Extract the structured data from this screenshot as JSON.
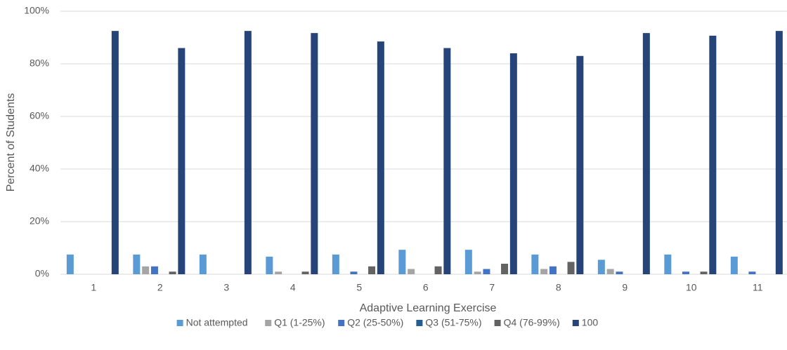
{
  "chart_data": {
    "type": "bar",
    "x_label": "Adaptive Learning Exercise",
    "y_label": "Percent of Students",
    "categories": [
      "1",
      "2",
      "3",
      "4",
      "5",
      "6",
      "7",
      "8",
      "9",
      "10",
      "11"
    ],
    "series": [
      {
        "name": "Not attempted",
        "color": "#5b9bd5",
        "values": [
          7.5,
          7.5,
          7.5,
          6.7,
          7.5,
          9.3,
          9.3,
          7.5,
          5.5,
          7.5,
          6.7
        ]
      },
      {
        "name": "Q1 (1-25%)",
        "color": "#a5a5a5",
        "values": [
          0,
          3,
          0,
          1,
          0,
          2,
          1,
          2,
          2,
          0,
          0
        ]
      },
      {
        "name": "Q2 (25-50%)",
        "color": "#4472c4",
        "values": [
          0,
          3,
          0,
          0,
          1,
          0,
          2,
          3,
          1,
          1,
          1
        ]
      },
      {
        "name": "Q3 (51-75%)",
        "color": "#255e91",
        "values": [
          0,
          0,
          0,
          0,
          0,
          0,
          0,
          0,
          0,
          0,
          0
        ]
      },
      {
        "name": "Q4 (76-99%)",
        "color": "#636363",
        "values": [
          0,
          1,
          0,
          1,
          3,
          3,
          4,
          4.7,
          0,
          1,
          0
        ]
      },
      {
        "name": "100",
        "color": "#264478",
        "values": [
          92.5,
          86,
          92.5,
          91.7,
          88.5,
          86,
          84,
          83,
          91.7,
          90.7,
          92.5
        ]
      }
    ],
    "ylim": [
      0,
      100
    ],
    "yticks": [
      {
        "value": 0,
        "label": "0%"
      },
      {
        "value": 20,
        "label": "20%"
      },
      {
        "value": 40,
        "label": "40%"
      },
      {
        "value": 60,
        "label": "60%"
      },
      {
        "value": 80,
        "label": "80%"
      },
      {
        "value": 100,
        "label": "100%"
      }
    ],
    "grid": true,
    "legend": "bottom"
  }
}
